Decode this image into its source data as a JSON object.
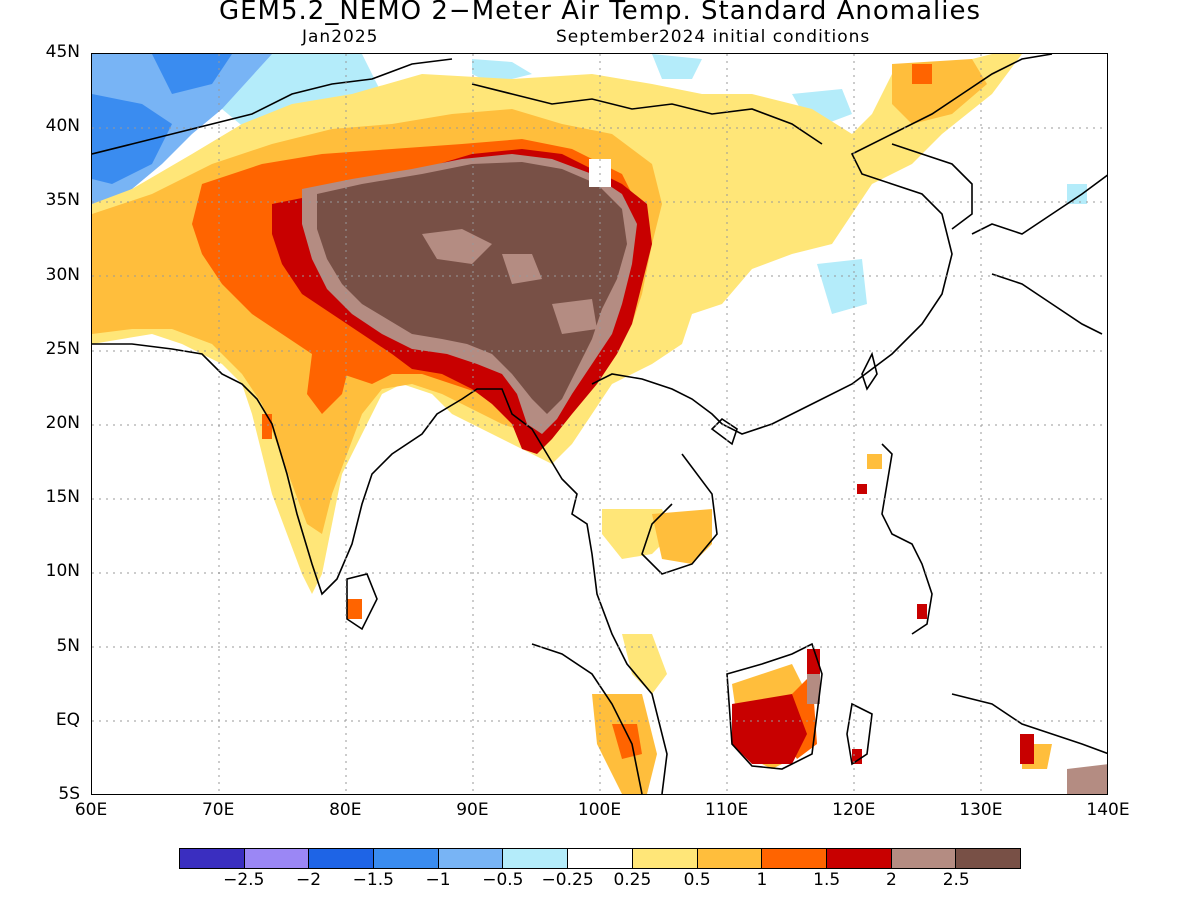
{
  "header": {
    "title": "GEM5.2_NEMO 2−Meter Air Temp. Standard Anomalies",
    "valid_month": "Jan2025",
    "init": "September2024 initial conditions"
  },
  "axes": {
    "lat_labels": [
      "45N",
      "40N",
      "35N",
      "30N",
      "25N",
      "20N",
      "15N",
      "10N",
      "5N",
      "EQ",
      "5S"
    ],
    "lon_labels": [
      "60E",
      "70E",
      "80E",
      "90E",
      "100E",
      "110E",
      "120E",
      "130E",
      "140E"
    ],
    "lat_range": [
      -5,
      45
    ],
    "lon_range": [
      60,
      140
    ],
    "grid": "dotted"
  },
  "colorbar": {
    "colors": [
      "#3a2ec0",
      "#9b87f5",
      "#1e64e6",
      "#3a8cf0",
      "#78b4f5",
      "#b4ecfa",
      "#ffffff",
      "#ffe678",
      "#ffbe3c",
      "#ff6400",
      "#c80000",
      "#b48c82",
      "#785046"
    ],
    "labels": [
      "−2.5",
      "−2",
      "−1.5",
      "−1",
      "−0.5",
      "−0.25",
      "0.25",
      "0.5",
      "1",
      "1.5",
      "2",
      "2.5"
    ]
  }
}
